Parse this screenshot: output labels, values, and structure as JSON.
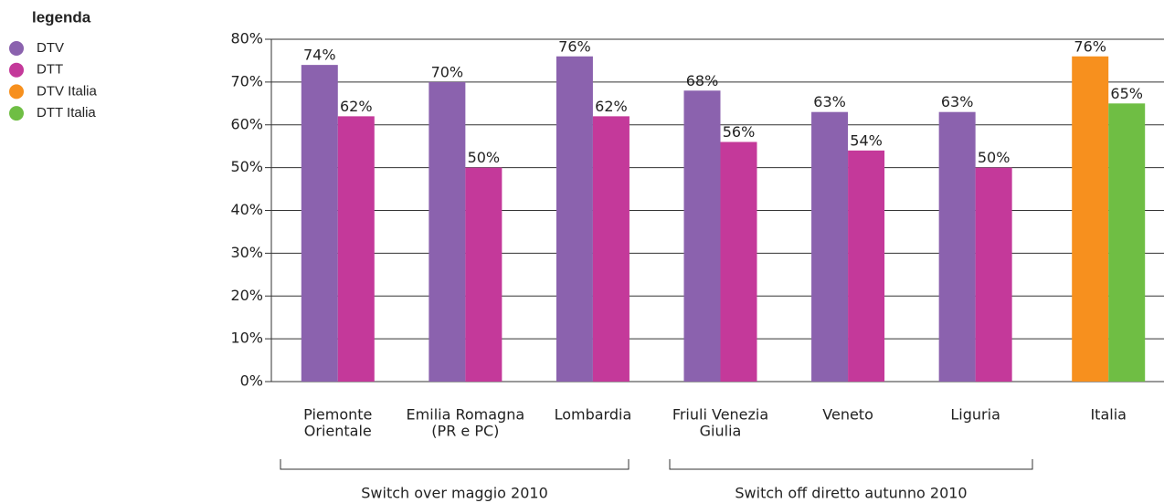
{
  "chart_data": {
    "type": "bar",
    "legend_title": "legenda",
    "categories": [
      [
        "Piemonte",
        "Orientale"
      ],
      [
        "Emilia Romagna",
        "(PR e PC)"
      ],
      [
        "Lombardia"
      ],
      [
        "Friuli Venezia",
        "Giulia"
      ],
      [
        "Veneto"
      ],
      [
        "Liguria"
      ],
      [
        "Italia"
      ]
    ],
    "series": [
      {
        "name": "DTV",
        "color": "#8b62ae",
        "values": [
          74,
          70,
          76,
          68,
          63,
          63,
          null
        ],
        "value_labels": [
          "74%",
          "70%",
          "76%",
          "68%",
          "63%",
          "63%",
          null
        ]
      },
      {
        "name": "DTT",
        "color": "#c4399a",
        "values": [
          62,
          50,
          62,
          56,
          54,
          50,
          null
        ],
        "value_labels": [
          "62%",
          "50%",
          "62%",
          "56%",
          "54%",
          "50%",
          null
        ]
      },
      {
        "name": "DTV Italia",
        "color": "#f7901e",
        "values": [
          null,
          null,
          null,
          null,
          null,
          null,
          76
        ],
        "value_labels": [
          null,
          null,
          null,
          null,
          null,
          null,
          "76%"
        ]
      },
      {
        "name": "DTT Italia",
        "color": "#6fbe44",
        "values": [
          null,
          null,
          null,
          null,
          null,
          null,
          65
        ],
        "value_labels": [
          null,
          null,
          null,
          null,
          null,
          null,
          "65%"
        ]
      }
    ],
    "annotations": [
      "Switch over maggio 2010",
      "Switch off diretto autunno 2010"
    ],
    "ylim": [
      0,
      80
    ],
    "yticks": [
      {
        "value": 0,
        "label": "0%"
      },
      {
        "value": 10,
        "label": "10%"
      },
      {
        "value": 20,
        "label": "20%"
      },
      {
        "value": 30,
        "label": "30%"
      },
      {
        "value": 40,
        "label": "40%"
      },
      {
        "value": 50,
        "label": "50%"
      },
      {
        "value": 60,
        "label": "60%"
      },
      {
        "value": 70,
        "label": "70%"
      },
      {
        "value": 80,
        "label": "80%"
      }
    ],
    "grid": true,
    "legend": "top-left"
  }
}
